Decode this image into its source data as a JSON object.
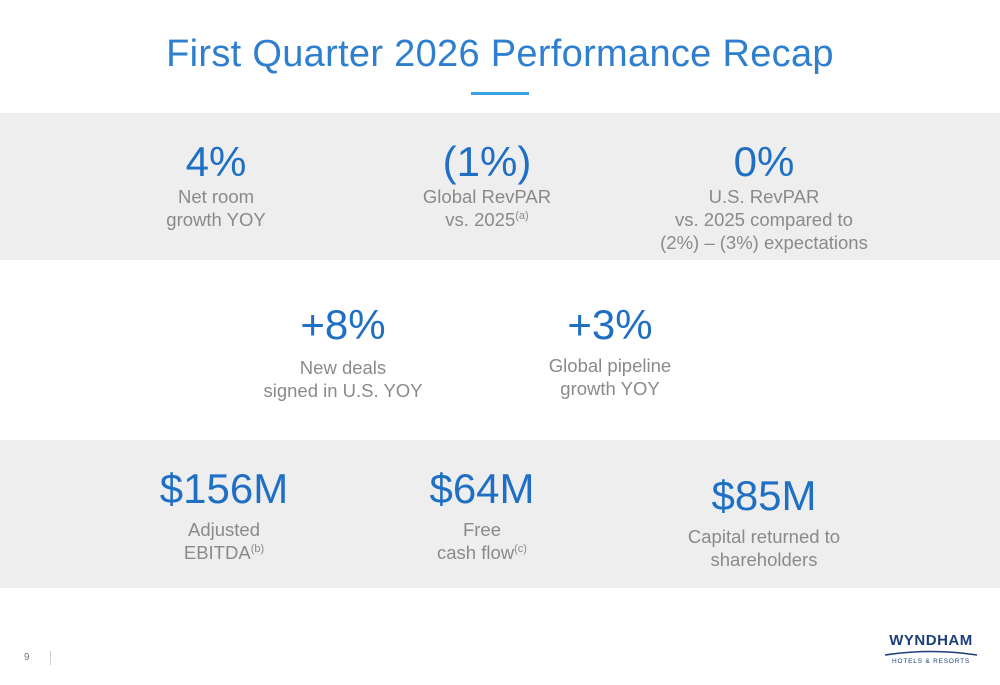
{
  "title": "First Quarter 2026 Performance Recap",
  "colors": {
    "title": "#2f7fcf",
    "metric_value": "#1f6fc4",
    "description": "#8a8a8a",
    "band": "#eeeeee",
    "accent_rule": "#3aa3e3",
    "logo": "#1c3f7a"
  },
  "metrics": {
    "net_room_growth": {
      "value": "4%",
      "lines": [
        "Net room",
        "growth YOY"
      ]
    },
    "global_revpar": {
      "value": "(1%)",
      "line1": "Global RevPAR",
      "line2": "vs. 2025",
      "note": "(a)"
    },
    "us_revpar": {
      "value": "0%",
      "lines": [
        "U.S. RevPAR",
        "vs. 2025 compared to",
        "(2%) – (3%) expectations"
      ]
    },
    "new_deals": {
      "value": "+8%",
      "lines": [
        "New deals",
        "signed in U.S. YOY"
      ]
    },
    "global_pipeline": {
      "value": "+3%",
      "lines": [
        "Global pipeline",
        "growth YOY"
      ]
    },
    "adjusted_ebitda": {
      "value": "$156M",
      "line1": "Adjusted",
      "line2": "EBITDA",
      "note": "(b)"
    },
    "free_cash_flow": {
      "value": "$64M",
      "line1": "Free",
      "line2": "cash flow",
      "note": "(c)"
    },
    "capital_returned": {
      "value": "$85M",
      "lines": [
        "Capital returned to",
        "shareholders"
      ]
    }
  },
  "footer": {
    "page_number": "9",
    "logo_name": "WYNDHAM",
    "logo_tagline": "HOTELS & RESORTS"
  }
}
